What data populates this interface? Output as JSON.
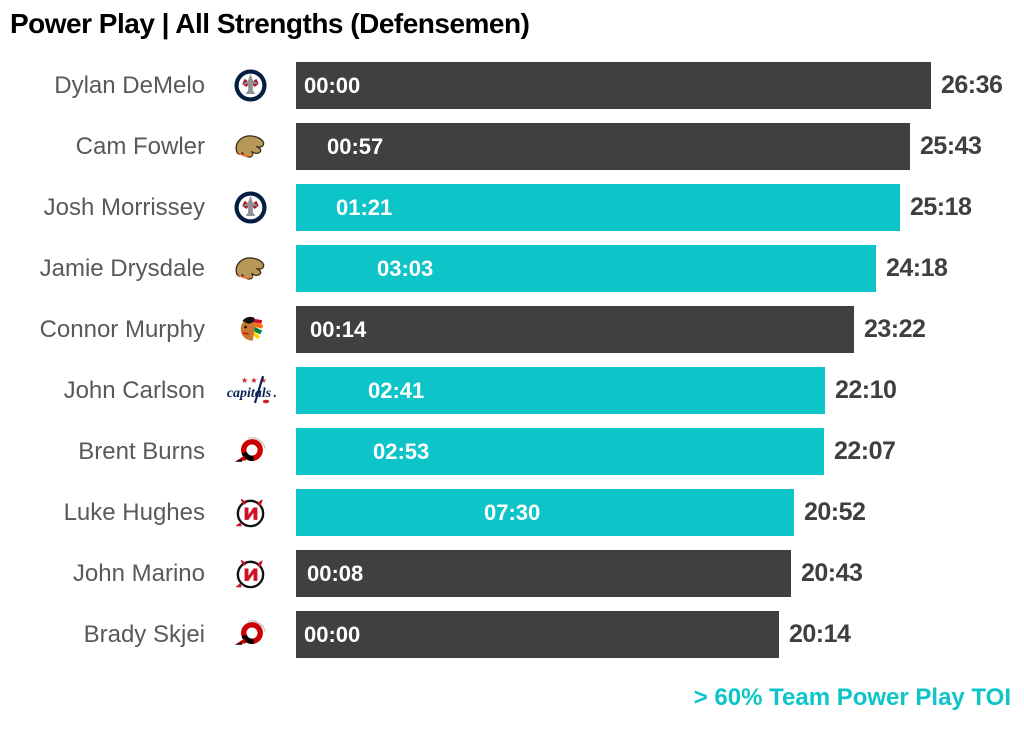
{
  "title": "Power Play | All Strengths (Defensemen)",
  "annotation": "> 60% Team Power Play TOI",
  "colors": {
    "highlight_bar": "#0DC5C9",
    "default_bar": "#404040",
    "name_text": "#595959",
    "value_text": "#3F3F3F",
    "inner_label_text": "#FFFFFF",
    "annotation_text": "#0DC5C9",
    "title_text": "#000000"
  },
  "chart_data": {
    "type": "bar",
    "orientation": "horizontal",
    "title": "Power Play | All Strengths (Defensemen)",
    "axis_seconds_range": [
      0,
      1596
    ],
    "grid": false,
    "legend_note": "> 60% Team Power Play TOI",
    "highlight_meaning": "teal bars mark players with > 60% of team power play TOI",
    "bar_length_metric": "total_toi",
    "inner_label_metric": "power_play_toi",
    "players": [
      {
        "name": "Dylan DeMelo",
        "team": "WPG",
        "team_name": "Winnipeg Jets",
        "pp_toi": "00:00",
        "pp_seconds": 0,
        "toi": "26:36",
        "toi_seconds": 1596,
        "highlighted": false
      },
      {
        "name": "Cam Fowler",
        "team": "ANA",
        "team_name": "Anaheim Ducks",
        "pp_toi": "00:57",
        "pp_seconds": 57,
        "toi": "25:43",
        "toi_seconds": 1543,
        "highlighted": false
      },
      {
        "name": "Josh Morrissey",
        "team": "WPG",
        "team_name": "Winnipeg Jets",
        "pp_toi": "01:21",
        "pp_seconds": 81,
        "toi": "25:18",
        "toi_seconds": 1518,
        "highlighted": true
      },
      {
        "name": "Jamie Drysdale",
        "team": "ANA",
        "team_name": "Anaheim Ducks",
        "pp_toi": "03:03",
        "pp_seconds": 183,
        "toi": "24:18",
        "toi_seconds": 1458,
        "highlighted": true
      },
      {
        "name": "Connor Murphy",
        "team": "CHI",
        "team_name": "Chicago Blackhawks",
        "pp_toi": "00:14",
        "pp_seconds": 14,
        "toi": "23:22",
        "toi_seconds": 1402,
        "highlighted": false
      },
      {
        "name": "John Carlson",
        "team": "WSH",
        "team_name": "Washington Capitals",
        "pp_toi": "02:41",
        "pp_seconds": 161,
        "toi": "22:10",
        "toi_seconds": 1330,
        "highlighted": true
      },
      {
        "name": "Brent Burns",
        "team": "CAR",
        "team_name": "Carolina Hurricanes",
        "pp_toi": "02:53",
        "pp_seconds": 173,
        "toi": "22:07",
        "toi_seconds": 1327,
        "highlighted": true
      },
      {
        "name": "Luke Hughes",
        "team": "NJD",
        "team_name": "New Jersey Devils",
        "pp_toi": "07:30",
        "pp_seconds": 450,
        "toi": "20:52",
        "toi_seconds": 1252,
        "highlighted": true
      },
      {
        "name": "John Marino",
        "team": "NJD",
        "team_name": "New Jersey Devils",
        "pp_toi": "00:08",
        "pp_seconds": 8,
        "toi": "20:43",
        "toi_seconds": 1243,
        "highlighted": false
      },
      {
        "name": "Brady Skjei",
        "team": "CAR",
        "team_name": "Carolina Hurricanes",
        "pp_toi": "00:00",
        "pp_seconds": 0,
        "toi": "20:14",
        "toi_seconds": 1214,
        "highlighted": false
      }
    ]
  }
}
